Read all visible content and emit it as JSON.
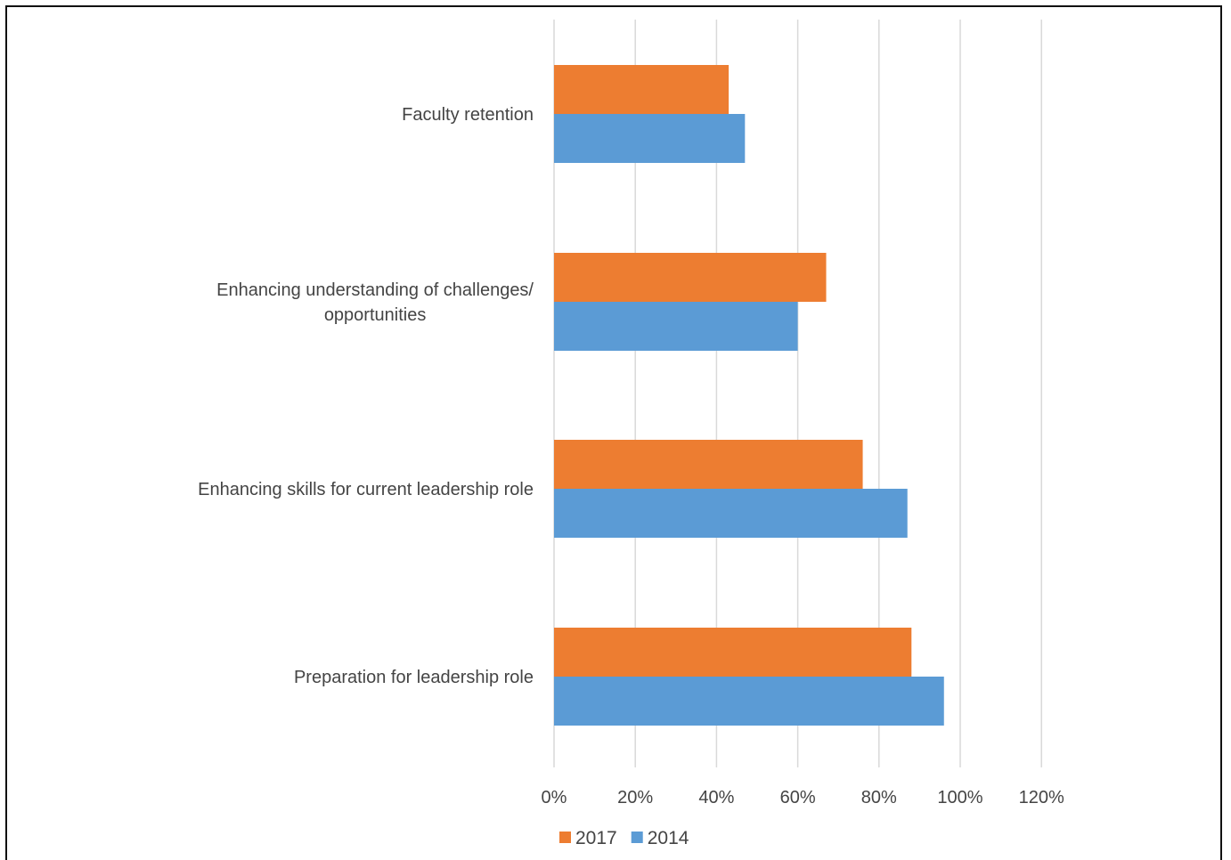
{
  "chart_data": {
    "type": "bar",
    "orientation": "horizontal",
    "categories": [
      "Faculty retention",
      "Enhancing understanding of challenges/ opportunities",
      "Enhancing skills for current leadership role",
      "Preparation for leadership role"
    ],
    "category_label_lines": [
      [
        "Faculty retention"
      ],
      [
        "Enhancing understanding of challenges/",
        "opportunities"
      ],
      [
        "Enhancing skills for current leadership role"
      ],
      [
        "Preparation for leadership role"
      ]
    ],
    "series": [
      {
        "name": "2017",
        "color": "#ED7D31",
        "values": [
          43,
          67,
          76,
          88
        ]
      },
      {
        "name": "2014",
        "color": "#5B9BD5",
        "values": [
          47,
          60,
          87,
          96
        ]
      }
    ],
    "xlim": [
      0,
      120
    ],
    "x_ticks": [
      0,
      20,
      40,
      60,
      80,
      100,
      120
    ],
    "x_tick_labels": [
      "0%",
      "20%",
      "40%",
      "60%",
      "80%",
      "100%",
      "120%"
    ],
    "grid": true,
    "legend_position": "bottom",
    "title": "",
    "xlabel": "",
    "ylabel": ""
  }
}
